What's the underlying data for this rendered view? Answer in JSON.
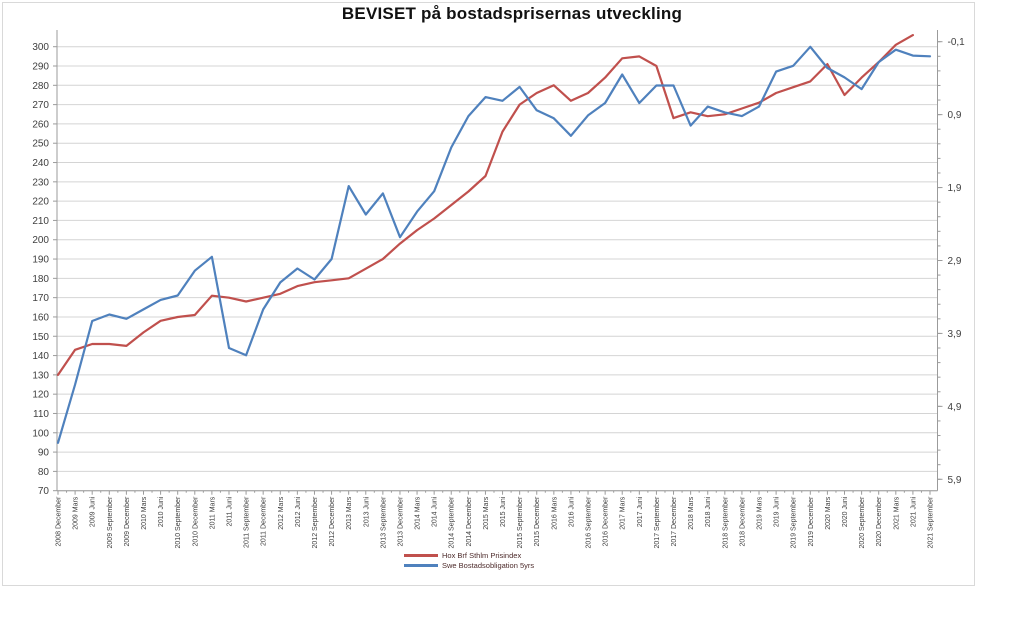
{
  "title": "BEVISET på bostadsprisernas utveckling",
  "legend": [
    {
      "label": "Hox Brf Sthlm Prisindex",
      "color": "#C0504D"
    },
    {
      "label": "Swe Bostadsobligation 5yrs",
      "color": "#4F81BD"
    }
  ],
  "chart_data": {
    "type": "line",
    "title": "BEVISET på bostadsprisernas utveckling",
    "grid": true,
    "legend_position": "bottom",
    "x_labels": [
      "2008 December",
      "2009 Mars",
      "2009 Juni",
      "2009 September",
      "2009 December",
      "2010 Mars",
      "2010 Juni",
      "2010 September",
      "2010 December",
      "2011 Mars",
      "2011 Juni",
      "2011 September",
      "2011 December",
      "2012 Mars",
      "2012 Juni",
      "2012 September",
      "2012 December",
      "2013 Mars",
      "2013 Juni",
      "2013 September",
      "2013 December",
      "2014 Mars",
      "2014 Juni",
      "2014 September",
      "2014 December",
      "2015 Mars",
      "2015 Juni",
      "2015 September",
      "2015 December",
      "2016 Mars",
      "2016 Juni",
      "2016 September",
      "2016 December",
      "2017 Mars",
      "2017 Juni",
      "2017 September",
      "2017 December",
      "2018 Mars",
      "2018 Juni",
      "2018 September",
      "2018 December",
      "2019 Mars",
      "2019 Juni",
      "2019 September",
      "2019 December",
      "2020 Mars",
      "2020 Juni",
      "2020 September",
      "2020 December",
      "2021 Mars",
      "2021 Juni",
      "2021 September"
    ],
    "left_axis": {
      "min": 70,
      "max": 300,
      "step": 10
    },
    "right_axis": {
      "min": -0.1,
      "max": 5.9,
      "inverted": true,
      "tick_labels": [
        "-0,1",
        "0,9",
        "1,9",
        "2,9",
        "3,9",
        "4,9",
        "5,9"
      ],
      "tick_values": [
        -0.1,
        0.9,
        1.9,
        2.9,
        3.9,
        4.9,
        5.9
      ]
    },
    "series": [
      {
        "name": "Hox Brf Sthlm Prisindex",
        "axis": "left",
        "color": "#C0504D",
        "values": [
          130,
          143,
          146,
          146,
          145,
          152,
          158,
          160,
          161,
          171,
          170,
          168,
          170,
          172,
          176,
          178,
          179,
          180,
          185,
          190,
          198,
          205,
          211,
          218,
          225,
          233,
          256,
          270,
          276,
          280,
          272,
          276,
          284,
          294,
          295,
          290,
          263,
          266,
          264,
          265,
          268,
          271,
          276,
          279,
          282,
          291,
          275,
          284,
          292,
          301,
          306,
          null
        ]
      },
      {
        "name": "Swe Bostadsobligation 5yrs",
        "axis": "right",
        "color": "#4F81BD",
        "values": [
          5.4,
          4.6,
          3.73,
          3.64,
          3.7,
          3.57,
          3.44,
          3.38,
          3.04,
          2.85,
          4.1,
          4.2,
          3.57,
          3.2,
          3.01,
          3.16,
          2.88,
          1.88,
          2.27,
          1.98,
          2.58,
          2.23,
          1.95,
          1.35,
          0.92,
          0.66,
          0.71,
          0.52,
          0.84,
          0.95,
          1.19,
          0.91,
          0.74,
          0.35,
          0.74,
          0.5,
          0.5,
          1.05,
          0.79,
          0.87,
          0.92,
          0.79,
          0.31,
          0.23,
          -0.03,
          0.26,
          0.39,
          0.55,
          0.18,
          0.01,
          0.09,
          0.1
        ]
      }
    ],
    "style": {
      "grid_color": "#d4d4d4",
      "axis_color": "#9b9b9b",
      "label_color": "#3f3f3f"
    }
  }
}
